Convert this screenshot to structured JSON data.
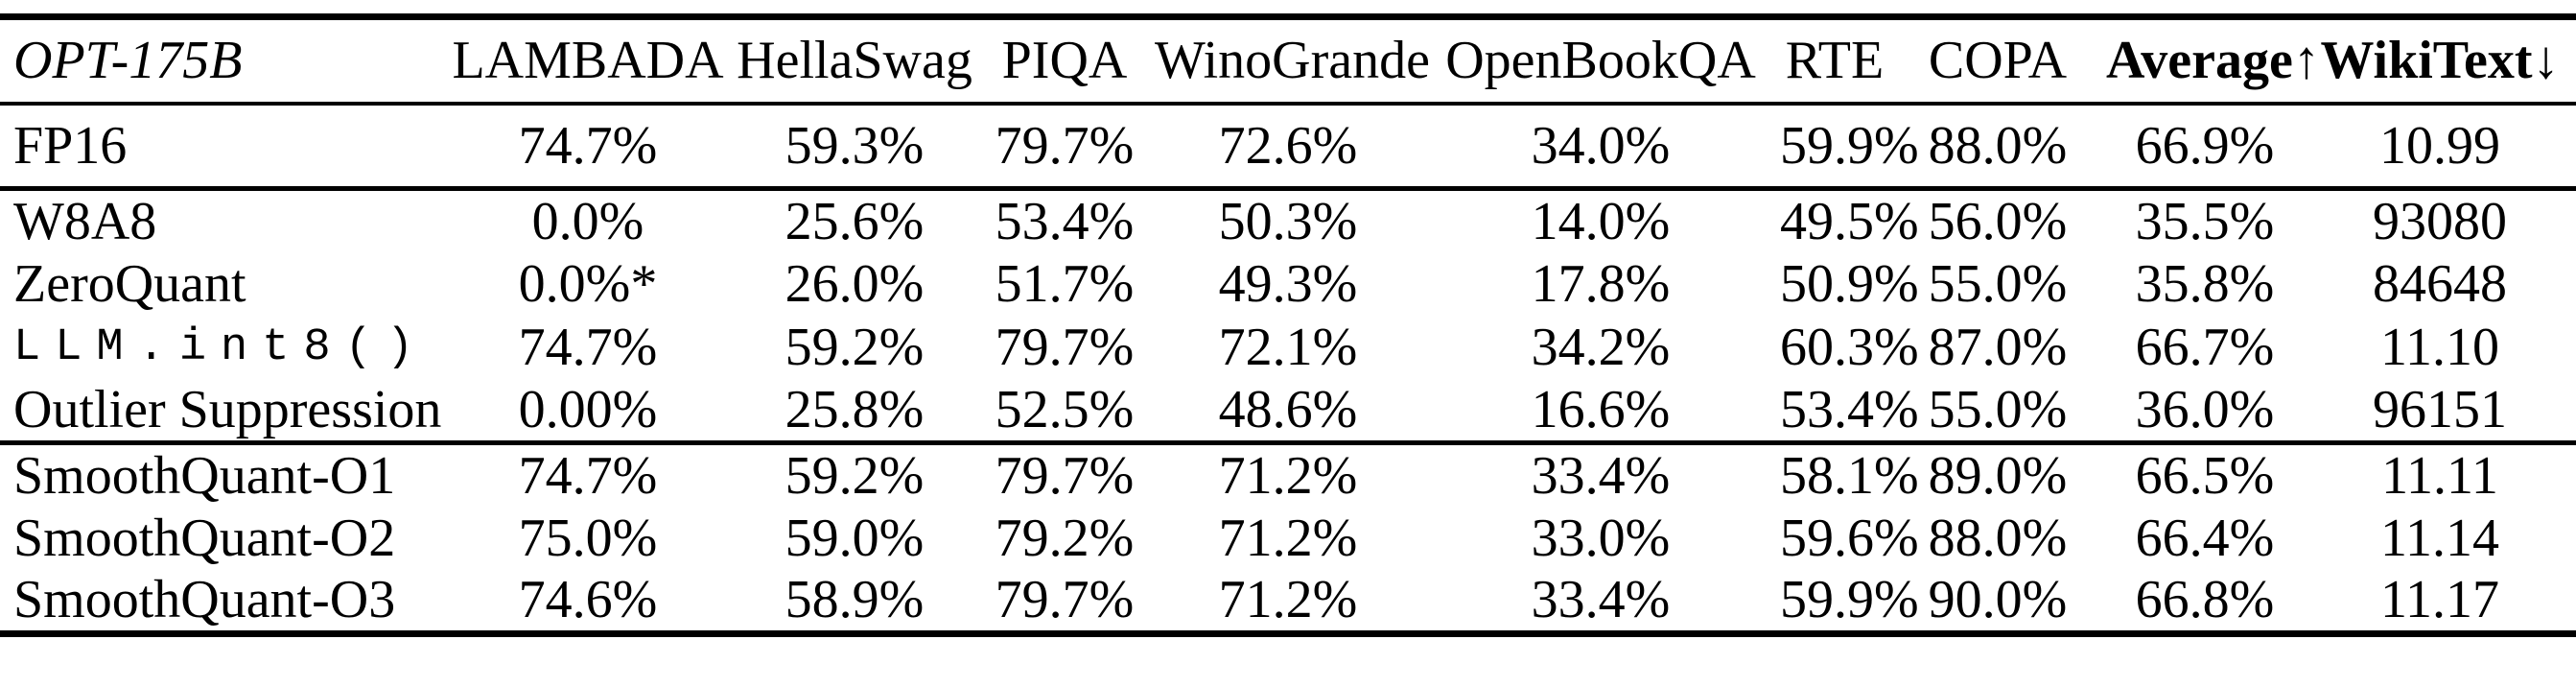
{
  "table": {
    "columns": [
      "OPT-175B",
      "LAMBADA",
      "HellaSwag",
      "PIQA",
      "WinoGrande",
      "OpenBookQA",
      "RTE",
      "COPA",
      "Average↑",
      "WikiText↓"
    ],
    "groups": [
      {
        "name": "baseline",
        "rows": [
          {
            "label": "FP16",
            "values": [
              "74.7%",
              "59.3%",
              "79.7%",
              "72.6%",
              "34.0%",
              "59.9%",
              "88.0%",
              "66.9%",
              "10.99"
            ]
          }
        ]
      },
      {
        "name": "prior-quantization-methods",
        "rows": [
          {
            "label": "W8A8",
            "values": [
              "0.0%",
              "25.6%",
              "53.4%",
              "50.3%",
              "14.0%",
              "49.5%",
              "56.0%",
              "35.5%",
              "93080"
            ]
          },
          {
            "label": "ZeroQuant",
            "values": [
              "0.0%*",
              "26.0%",
              "51.7%",
              "49.3%",
              "17.8%",
              "50.9%",
              "55.0%",
              "35.8%",
              "84648"
            ]
          },
          {
            "label": "LLM.int8()",
            "values": [
              "74.7%",
              "59.2%",
              "79.7%",
              "72.1%",
              "34.2%",
              "60.3%",
              "87.0%",
              "66.7%",
              "11.10"
            ]
          },
          {
            "label": "Outlier Suppression",
            "values": [
              "0.00%",
              "25.8%",
              "52.5%",
              "48.6%",
              "16.6%",
              "53.4%",
              "55.0%",
              "36.0%",
              "96151"
            ]
          }
        ]
      },
      {
        "name": "smoothquant",
        "rows": [
          {
            "label": "SmoothQuant-O1",
            "values": [
              "74.7%",
              "59.2%",
              "79.7%",
              "71.2%",
              "33.4%",
              "58.1%",
              "89.0%",
              "66.5%",
              "11.11"
            ]
          },
          {
            "label": "SmoothQuant-O2",
            "values": [
              "75.0%",
              "59.0%",
              "79.2%",
              "71.2%",
              "33.0%",
              "59.6%",
              "88.0%",
              "66.4%",
              "11.14"
            ]
          },
          {
            "label": "SmoothQuant-O3",
            "values": [
              "74.6%",
              "58.9%",
              "79.7%",
              "71.2%",
              "33.4%",
              "59.9%",
              "90.0%",
              "66.8%",
              "11.17"
            ]
          }
        ]
      }
    ]
  },
  "colors": {
    "text": "#000000",
    "background": "#ffffff",
    "rule": "#000000"
  }
}
